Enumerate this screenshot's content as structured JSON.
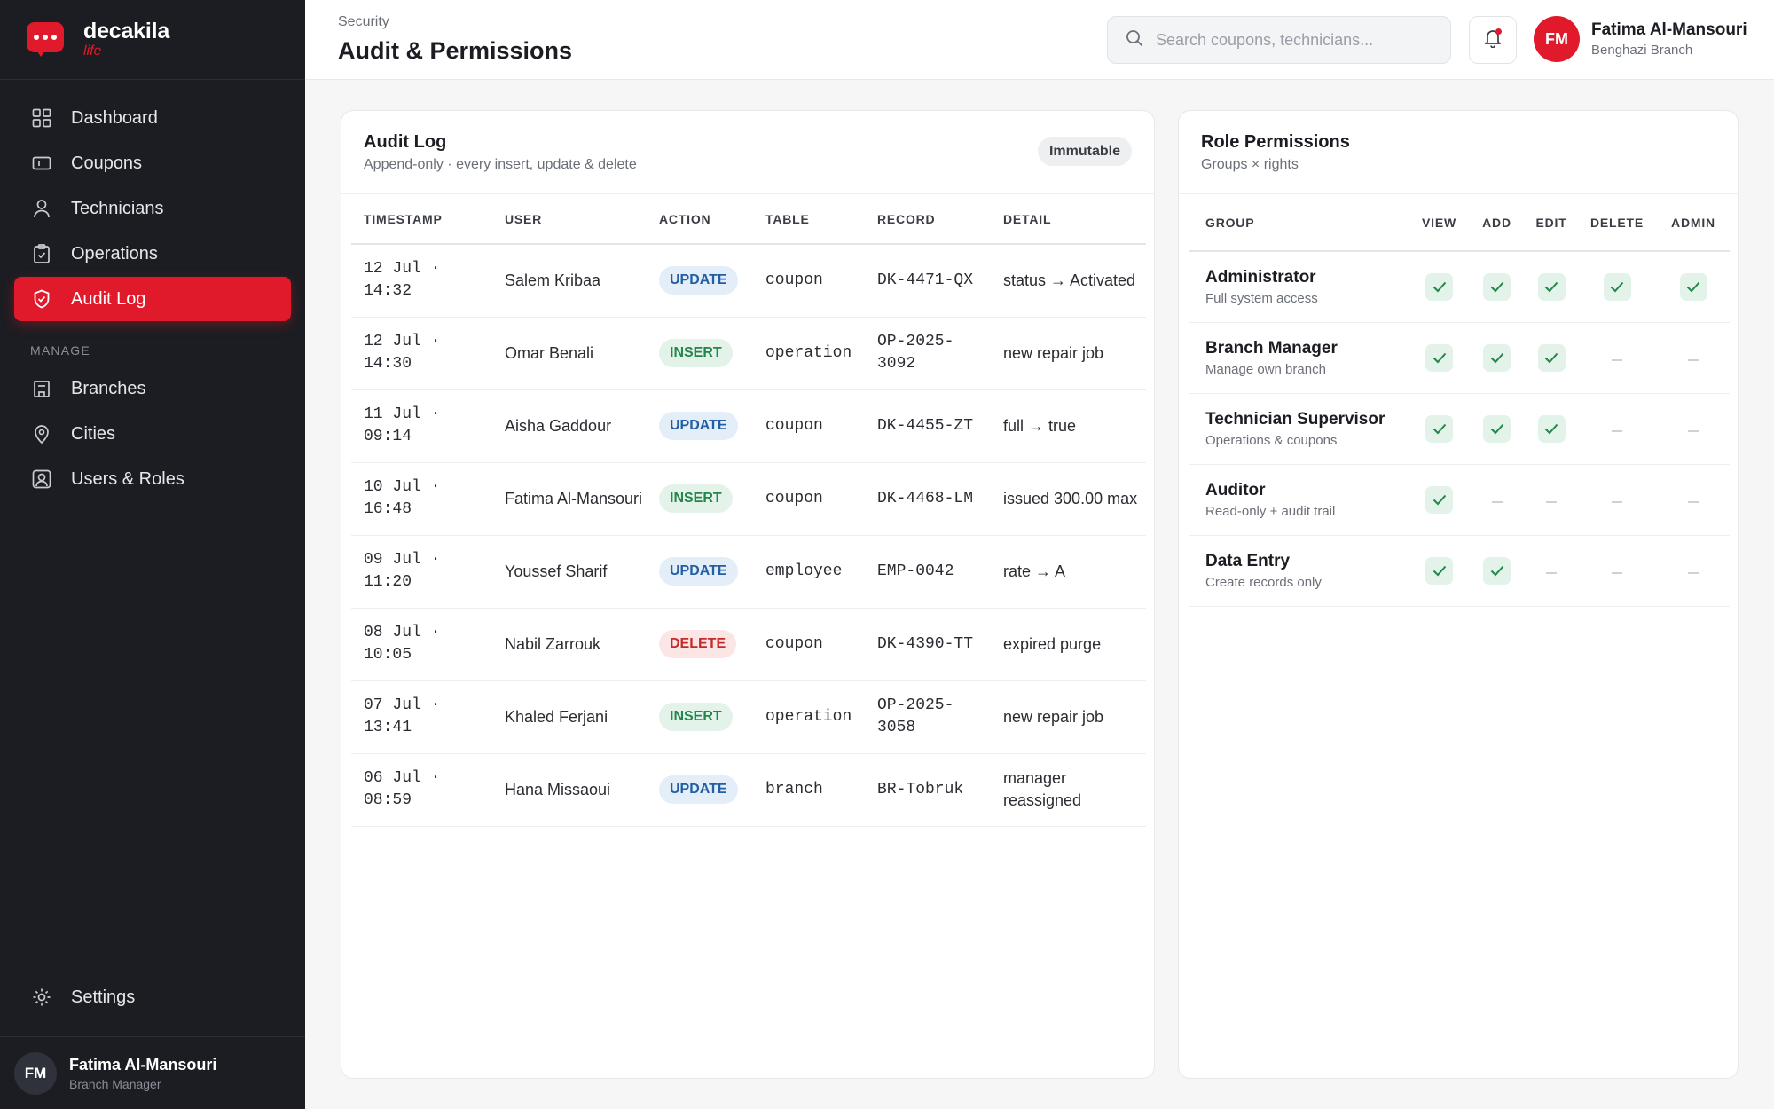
{
  "brand": {
    "name": "decakila",
    "sub": "life"
  },
  "sidebar": {
    "items": [
      {
        "label": "Dashboard",
        "icon": "grid-icon",
        "active": false
      },
      {
        "label": "Coupons",
        "icon": "ticket-icon",
        "active": false
      },
      {
        "label": "Technicians",
        "icon": "user-icon",
        "active": false
      },
      {
        "label": "Operations",
        "icon": "clipboard-icon",
        "active": false
      },
      {
        "label": "Audit Log",
        "icon": "shield-icon",
        "active": true
      }
    ],
    "section_label": "MANAGE",
    "manage_items": [
      {
        "label": "Branches",
        "icon": "building-icon"
      },
      {
        "label": "Cities",
        "icon": "map-pin-icon"
      },
      {
        "label": "Users & Roles",
        "icon": "user-badge-icon"
      }
    ],
    "settings_label": "Settings",
    "user": {
      "initials": "FM",
      "name": "Fatima Al-Mansouri",
      "role": "Branch Manager"
    }
  },
  "header": {
    "breadcrumb": "Security",
    "title": "Audit & Permissions",
    "search_placeholder": "Search coupons, technicians...",
    "user": {
      "initials": "FM",
      "name": "Fatima Al-Mansouri",
      "branch": "Benghazi Branch"
    }
  },
  "audit": {
    "title": "Audit Log",
    "subtitle": "Append-only · every insert, update & delete",
    "badge": "Immutable",
    "columns": [
      "TIMESTAMP",
      "USER",
      "ACTION",
      "TABLE",
      "RECORD",
      "DETAIL"
    ],
    "rows": [
      {
        "ts1": "12 Jul ·",
        "ts2": "14:32",
        "user": "Salem Kribaa",
        "action": "UPDATE",
        "table": "coupon",
        "record": "DK-4471-QX",
        "detail": "status → Activated"
      },
      {
        "ts1": "12 Jul ·",
        "ts2": "14:30",
        "user": "Omar Benali",
        "action": "INSERT",
        "table": "operation",
        "record": "OP-2025-3092",
        "detail": "new repair job"
      },
      {
        "ts1": "11 Jul ·",
        "ts2": "09:14",
        "user": "Aisha Gaddour",
        "action": "UPDATE",
        "table": "coupon",
        "record": "DK-4455-ZT",
        "detail": "full → true"
      },
      {
        "ts1": "10 Jul ·",
        "ts2": "16:48",
        "user": "Fatima Al-Mansouri",
        "action": "INSERT",
        "table": "coupon",
        "record": "DK-4468-LM",
        "detail": "issued 300.00 max"
      },
      {
        "ts1": "09 Jul ·",
        "ts2": "11:20",
        "user": "Youssef Sharif",
        "action": "UPDATE",
        "table": "employee",
        "record": "EMP-0042",
        "detail": "rate → A"
      },
      {
        "ts1": "08 Jul ·",
        "ts2": "10:05",
        "user": "Nabil Zarrouk",
        "action": "DELETE",
        "table": "coupon",
        "record": "DK-4390-TT",
        "detail": "expired purge"
      },
      {
        "ts1": "07 Jul ·",
        "ts2": "13:41",
        "user": "Khaled Ferjani",
        "action": "INSERT",
        "table": "operation",
        "record": "OP-2025-3058",
        "detail": "new repair job"
      },
      {
        "ts1": "06 Jul ·",
        "ts2": "08:59",
        "user": "Hana Missaoui",
        "action": "UPDATE",
        "table": "branch",
        "record": "BR-Tobruk",
        "detail": "manager reassigned"
      }
    ]
  },
  "roles": {
    "title": "Role Permissions",
    "subtitle": "Groups × rights",
    "columns": [
      "GROUP",
      "VIEW",
      "ADD",
      "EDIT",
      "DELETE",
      "ADMIN"
    ],
    "rows": [
      {
        "name": "Administrator",
        "desc": "Full system access",
        "perms": [
          true,
          true,
          true,
          true,
          true
        ]
      },
      {
        "name": "Branch Manager",
        "desc": "Manage own branch",
        "perms": [
          true,
          true,
          true,
          false,
          false
        ]
      },
      {
        "name": "Technician Supervisor",
        "desc": "Operations & coupons",
        "perms": [
          true,
          true,
          true,
          false,
          false
        ]
      },
      {
        "name": "Auditor",
        "desc": "Read-only + audit trail",
        "perms": [
          true,
          false,
          false,
          false,
          false
        ]
      },
      {
        "name": "Data Entry",
        "desc": "Create records only",
        "perms": [
          true,
          true,
          false,
          false,
          false
        ]
      }
    ]
  },
  "colors": {
    "accent": "#e01a2b",
    "sidebar": "#1b1d22",
    "check_green": "#23864a"
  }
}
